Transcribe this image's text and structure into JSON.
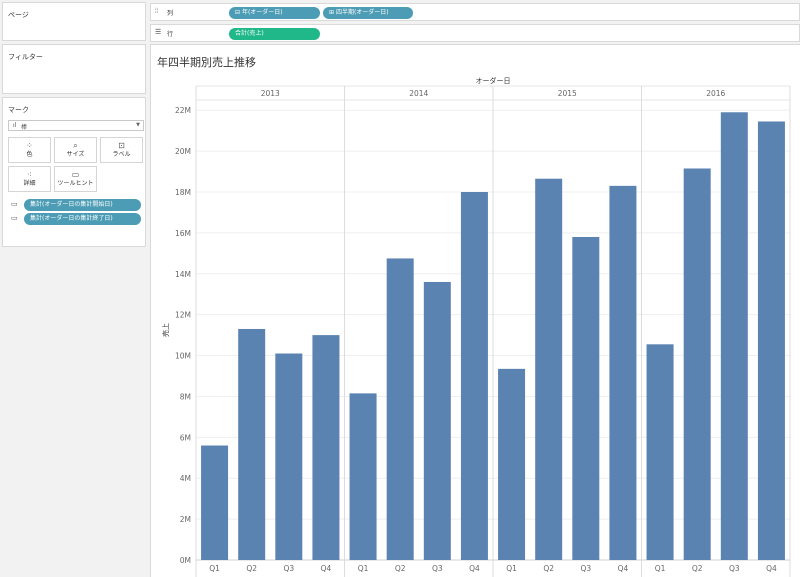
{
  "left_panel": {
    "pages": {
      "title": "ページ"
    },
    "filters": {
      "title": "フィルター"
    },
    "marks": {
      "title": "マーク",
      "mark_type": "棒",
      "buttons": [
        {
          "id": "color",
          "label": "色",
          "icon": "color-dots-icon"
        },
        {
          "id": "size",
          "label": "サイズ",
          "icon": "size-icon"
        },
        {
          "id": "label",
          "label": "ラベル",
          "icon": "label-icon"
        },
        {
          "id": "detail",
          "label": "詳細",
          "icon": "detail-icon"
        },
        {
          "id": "tooltip",
          "label": "ツールヒント",
          "icon": "tooltip-icon"
        }
      ],
      "pills": [
        {
          "label": "集計(オーダー日の集計開始日)",
          "icon": "tooltip-icon"
        },
        {
          "label": "集計(オーダー日の集計終了日)",
          "icon": "tooltip-icon"
        }
      ]
    }
  },
  "shelves": {
    "columns": {
      "label": "列",
      "icon": "columns-icon",
      "pills": [
        "年(オーダー日)",
        "四半期(オーダー日)"
      ]
    },
    "rows": {
      "label": "行",
      "icon": "rows-icon",
      "pills": [
        "合計(売上)"
      ]
    }
  },
  "colors": {
    "bar": "#5b83b2",
    "pill_dimension": "#4b9cb4",
    "pill_measure": "#20b889"
  },
  "chart_data": {
    "type": "bar",
    "title": "年四半期別売上推移",
    "x_header": "オーダー日",
    "ylabel": "売上",
    "ylim": [
      0,
      22500000
    ],
    "y_ticks": [
      "0M",
      "2M",
      "4M",
      "6M",
      "8M",
      "10M",
      "12M",
      "14M",
      "16M",
      "18M",
      "20M",
      "22M"
    ],
    "groups": [
      "2013",
      "2014",
      "2015",
      "2016"
    ],
    "categories": [
      "Q1",
      "Q2",
      "Q3",
      "Q4"
    ],
    "series": [
      {
        "group": "2013",
        "values": [
          5600000,
          11300000,
          10100000,
          11000000
        ]
      },
      {
        "group": "2014",
        "values": [
          8150000,
          14750000,
          13600000,
          18000000
        ]
      },
      {
        "group": "2015",
        "values": [
          9350000,
          18650000,
          15800000,
          18300000
        ]
      },
      {
        "group": "2016",
        "values": [
          10550000,
          19150000,
          21900000,
          21450000
        ]
      }
    ],
    "grid": true
  }
}
